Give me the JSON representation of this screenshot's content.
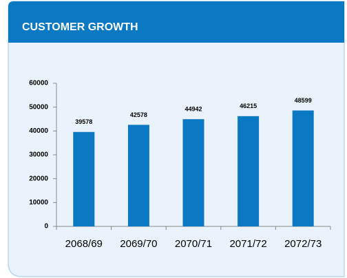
{
  "chart_data": {
    "type": "bar",
    "title": "CUSTOMER GROWTH",
    "categories": [
      "2068/69",
      "2069/70",
      "2070/71",
      "2071/72",
      "2072/73"
    ],
    "values": [
      39578,
      42578,
      44942,
      46215,
      48599
    ],
    "color": "#0a78c2",
    "ylim": [
      0,
      60000
    ],
    "yticks": [
      0,
      10000,
      20000,
      30000,
      40000,
      50000,
      60000
    ],
    "grid": false
  }
}
